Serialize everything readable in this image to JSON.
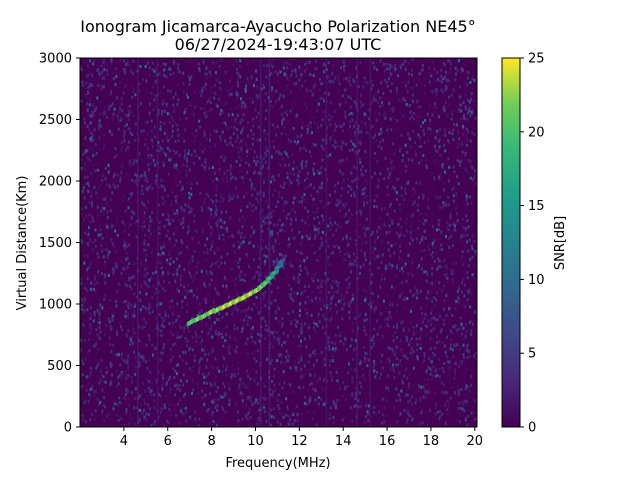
{
  "chart_data": {
    "type": "heatmap",
    "title": "Ionogram Jicamarca-Ayacucho Polarization NE45°",
    "subtitle": "06/27/2024-19:43:07 UTC",
    "xlabel": "Frequency(MHz)",
    "ylabel": "Virtual Distance(Km)",
    "xlim": [
      2.0,
      20.1
    ],
    "ylim": [
      0,
      3000
    ],
    "xticks": [
      4,
      6,
      8,
      10,
      12,
      14,
      16,
      18,
      20
    ],
    "yticks": [
      0,
      500,
      1000,
      1500,
      2000,
      2500,
      3000
    ],
    "colorbar": {
      "label": "SNR[dB]",
      "colormap": "viridis",
      "range": [
        0,
        25
      ],
      "ticks": [
        0,
        5,
        10,
        15,
        20,
        25
      ]
    },
    "background_snr_db": 1,
    "trace": {
      "description_values": "echo trace (frequency MHz, virtual distance Km, SNR dB)",
      "points": [
        [
          7.0,
          850,
          22
        ],
        [
          7.3,
          875,
          23
        ],
        [
          7.6,
          900,
          23
        ],
        [
          7.9,
          930,
          24
        ],
        [
          8.2,
          950,
          24
        ],
        [
          8.5,
          975,
          25
        ],
        [
          8.8,
          1000,
          25
        ],
        [
          9.1,
          1025,
          25
        ],
        [
          9.4,
          1050,
          25
        ],
        [
          9.7,
          1080,
          25
        ],
        [
          10.0,
          1110,
          24
        ],
        [
          10.2,
          1140,
          23
        ],
        [
          10.4,
          1170,
          22
        ],
        [
          10.6,
          1210,
          20
        ],
        [
          10.8,
          1250,
          18
        ],
        [
          11.0,
          1300,
          14
        ],
        [
          11.1,
          1340,
          10
        ]
      ]
    },
    "grid": false
  }
}
